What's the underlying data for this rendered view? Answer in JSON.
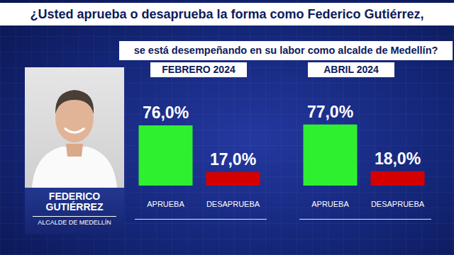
{
  "question": [
    "¿Usted aprueba o desaprueba la forma como Federico Gutiérrez,",
    "se está desempeñando en su labor como alcalde de Medellín?"
  ],
  "person": {
    "name": [
      "FEDERICO",
      "GUTIÉRREZ"
    ],
    "role": "ALCALDE DE MEDELLÍN"
  },
  "chart_data": [
    {
      "type": "bar",
      "title": "FEBRERO 2024",
      "categories": [
        "APRUEBA",
        "DESAPRUEBA"
      ],
      "values": [
        76,
        17
      ],
      "value_labels": [
        "76,0%",
        "17,0%"
      ],
      "colors": [
        "#2ef02e",
        "#d40000"
      ],
      "ylim": [
        0,
        100
      ],
      "grid": false,
      "data_labels": true,
      "tick_labels": "x"
    },
    {
      "type": "bar",
      "title": "ABRIL 2024",
      "categories": [
        "APRUEBA",
        "DESAPRUEBA"
      ],
      "values": [
        77,
        18
      ],
      "value_labels": [
        "77,0%",
        "18,0%"
      ],
      "colors": [
        "#2ef02e",
        "#d40000"
      ],
      "ylim": [
        0,
        100
      ],
      "grid": false,
      "data_labels": true,
      "tick_labels": "x"
    }
  ]
}
